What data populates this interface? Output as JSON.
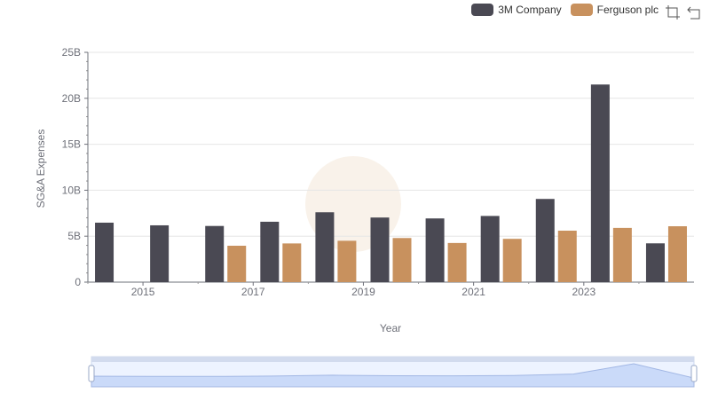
{
  "legend": {
    "items": [
      {
        "label": "3M Company",
        "color": "#4a4953"
      },
      {
        "label": "Ferguson plc",
        "color": "#c8915e"
      }
    ]
  },
  "toolbox": {
    "icons": [
      "zoom-icon",
      "restore-icon"
    ]
  },
  "chart_data": {
    "type": "bar",
    "categories": [
      "2014",
      "2015",
      "2016",
      "2017",
      "2018",
      "2019",
      "2020",
      "2021",
      "2022",
      "2023",
      "2024"
    ],
    "x_tick_labels": [
      "2015",
      "2017",
      "2019",
      "2021",
      "2023"
    ],
    "series": [
      {
        "name": "3M Company",
        "color": "#4a4953",
        "values": [
          6.47,
          6.18,
          6.11,
          6.57,
          7.6,
          7.03,
          6.93,
          7.2,
          9.05,
          21.5,
          4.22
        ]
      },
      {
        "name": "Ferguson plc",
        "color": "#c8915e",
        "values": [
          null,
          null,
          3.96,
          4.21,
          4.5,
          4.8,
          4.26,
          4.71,
          5.6,
          5.9,
          6.08
        ]
      }
    ],
    "xlabel": "Year",
    "ylabel": "SG&A Expenses",
    "ylim": [
      0,
      25
    ],
    "y_ticks": [
      0,
      5,
      10,
      15,
      20,
      25
    ],
    "y_tick_labels": [
      "0",
      "5B",
      "10B",
      "15B",
      "20B",
      "25B"
    ],
    "grid": true,
    "legend_position": "top-right",
    "data_zoom": {
      "start": 0,
      "end": 100
    }
  }
}
